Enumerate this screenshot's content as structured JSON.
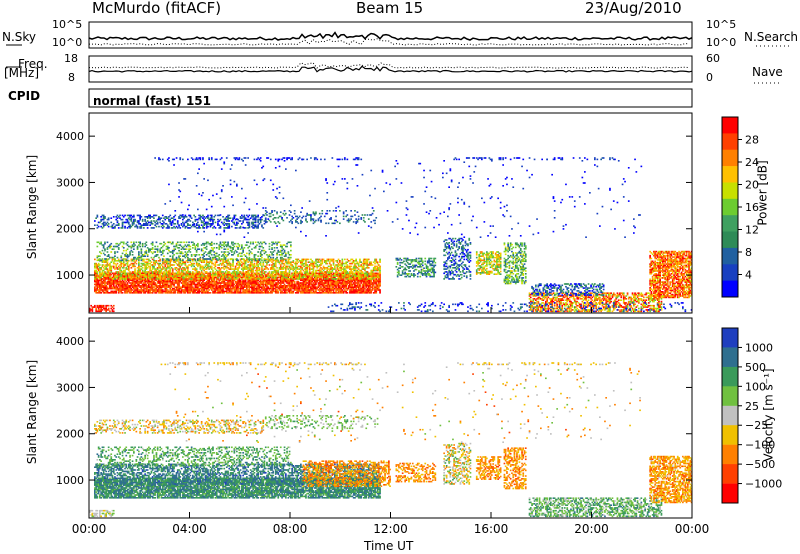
{
  "header": {
    "station": "McMurdo (fitACF)",
    "beam": "Beam 15",
    "date": "23/Aug/2010"
  },
  "side_labels": {
    "nsky": "N.Sky",
    "nsearch": "N.Search",
    "freq": "Freq.",
    "freq_unit": "[MHz]",
    "nave": "Nave",
    "cpid": "CPID",
    "cpid_value": "normal (fast) 151"
  },
  "top_panels": {
    "noise_left_ticks": [
      "10^5",
      "10^0"
    ],
    "noise_right_ticks": [
      "10^5",
      "10^0"
    ],
    "freq_left_ticks": [
      "18",
      "8"
    ],
    "nave_right_ticks": [
      "60",
      "0"
    ]
  },
  "chart_data": [
    {
      "type": "heatmap",
      "name": "power",
      "ylabel": "Slant Range [km]",
      "ylim": [
        180,
        4500
      ],
      "y_ticks": [
        1000,
        2000,
        3000,
        4000
      ],
      "xlim": [
        0,
        24
      ],
      "colorbar": {
        "label": "Power [dB]",
        "ticks": [
          "28",
          "24",
          "20",
          "16",
          "12",
          "8",
          "4"
        ],
        "colors": [
          "#ff0000",
          "#ff4000",
          "#ff8000",
          "#ffc000",
          "#c8e000",
          "#6ccc30",
          "#3fa060",
          "#2e8b57",
          "#2060a0",
          "#1840c0",
          "#0000ff"
        ]
      },
      "bands": [
        {
          "t": [
            0.2,
            11.6
          ],
          "r": [
            600,
            1050
          ],
          "cmin": 0.0,
          "cmax": 0.25,
          "d": 0.85
        },
        {
          "t": [
            0.2,
            11.6
          ],
          "r": [
            900,
            1350
          ],
          "cmin": 0.15,
          "cmax": 0.55,
          "d": 0.55
        },
        {
          "t": [
            0.3,
            8.0
          ],
          "r": [
            1300,
            1700
          ],
          "cmin": 0.4,
          "cmax": 0.8,
          "d": 0.3
        },
        {
          "t": [
            0.2,
            7.0
          ],
          "r": [
            2000,
            2300
          ],
          "cmin": 0.65,
          "cmax": 1.0,
          "d": 0.35
        },
        {
          "t": [
            7.0,
            11.5
          ],
          "r": [
            2100,
            2400
          ],
          "cmin": 0.6,
          "cmax": 0.9,
          "d": 0.2
        },
        {
          "t": [
            0.0,
            1.0
          ],
          "r": [
            200,
            350
          ],
          "cmin": 0.0,
          "cmax": 0.2,
          "d": 0.6
        },
        {
          "t": [
            12.2,
            13.8
          ],
          "r": [
            950,
            1350
          ],
          "cmin": 0.45,
          "cmax": 0.85,
          "d": 0.45
        },
        {
          "t": [
            14.1,
            15.2
          ],
          "r": [
            900,
            1800
          ],
          "cmin": 0.55,
          "cmax": 1.0,
          "d": 0.35
        },
        {
          "t": [
            15.4,
            16.4
          ],
          "r": [
            1000,
            1500
          ],
          "cmin": 0.2,
          "cmax": 0.6,
          "d": 0.55
        },
        {
          "t": [
            16.5,
            17.4
          ],
          "r": [
            800,
            1700
          ],
          "cmin": 0.35,
          "cmax": 0.8,
          "d": 0.45
        },
        {
          "t": [
            17.5,
            22.8
          ],
          "r": [
            200,
            600
          ],
          "cmin": 0.0,
          "cmax": 0.5,
          "d": 0.55
        },
        {
          "t": [
            17.6,
            20.5
          ],
          "r": [
            550,
            800
          ],
          "cmin": 0.6,
          "cmax": 1.0,
          "d": 0.4
        },
        {
          "t": [
            22.3,
            24.0
          ],
          "r": [
            500,
            1500
          ],
          "cmin": 0.0,
          "cmax": 0.4,
          "d": 0.7
        },
        {
          "t": [
            9.5,
            24.0
          ],
          "r": [
            200,
            400
          ],
          "cmin": 0.7,
          "cmax": 1.0,
          "d": 0.12
        },
        {
          "t": [
            3.0,
            22.0
          ],
          "r": [
            1800,
            3500
          ],
          "cmin": 0.85,
          "cmax": 1.0,
          "d": 0.015
        },
        {
          "t": [
            2.5,
            11.0
          ],
          "r": [
            3480,
            3540
          ],
          "cmin": 0.8,
          "cmax": 1.0,
          "d": 0.25
        },
        {
          "t": [
            14.5,
            21.0
          ],
          "r": [
            3480,
            3540
          ],
          "cmin": 0.8,
          "cmax": 1.0,
          "d": 0.2
        }
      ]
    },
    {
      "type": "heatmap",
      "name": "velocity",
      "ylabel": "Slant Range [km]",
      "xlabel": "Time UT",
      "ylim": [
        180,
        4500
      ],
      "y_ticks": [
        1000,
        2000,
        3000,
        4000
      ],
      "xlim": [
        0,
        24
      ],
      "x_ticks": [
        "00:00",
        "04:00",
        "08:00",
        "12:00",
        "16:00",
        "20:00",
        "00:00"
      ],
      "colorbar": {
        "label": "Velocity [m s⁻¹]",
        "ticks": [
          "1000",
          "500",
          "100",
          "25",
          "−25",
          "−100",
          "−500",
          "−1000"
        ],
        "colors": [
          "#1f3fbf",
          "#2f6f8f",
          "#3a9a5a",
          "#70c040",
          "#c0c0c0",
          "#f0c000",
          "#ff8000",
          "#ff4000",
          "#ff0000"
        ]
      },
      "bands": [
        {
          "t": [
            0.2,
            11.6
          ],
          "r": [
            600,
            1050
          ],
          "cmin": 0.15,
          "cmax": 0.35,
          "d": 0.8
        },
        {
          "t": [
            0.2,
            11.6
          ],
          "r": [
            900,
            1350
          ],
          "cmin": 0.1,
          "cmax": 0.3,
          "d": 0.5
        },
        {
          "t": [
            8.5,
            12.0
          ],
          "r": [
            850,
            1400
          ],
          "cmin": 0.6,
          "cmax": 0.8,
          "d": 0.45
        },
        {
          "t": [
            0.3,
            8.0
          ],
          "r": [
            1300,
            1700
          ],
          "cmin": 0.2,
          "cmax": 0.45,
          "d": 0.3
        },
        {
          "t": [
            0.2,
            7.0
          ],
          "r": [
            2000,
            2300
          ],
          "cmin": 0.4,
          "cmax": 0.75,
          "d": 0.3
        },
        {
          "t": [
            7.0,
            11.5
          ],
          "r": [
            2100,
            2400
          ],
          "cmin": 0.3,
          "cmax": 0.5,
          "d": 0.2
        },
        {
          "t": [
            12.2,
            13.8
          ],
          "r": [
            950,
            1350
          ],
          "cmin": 0.6,
          "cmax": 0.8,
          "d": 0.45
        },
        {
          "t": [
            14.1,
            15.2
          ],
          "r": [
            900,
            1800
          ],
          "cmin": 0.3,
          "cmax": 0.75,
          "d": 0.35
        },
        {
          "t": [
            15.4,
            16.4
          ],
          "r": [
            1000,
            1500
          ],
          "cmin": 0.6,
          "cmax": 0.8,
          "d": 0.5
        },
        {
          "t": [
            16.5,
            17.4
          ],
          "r": [
            800,
            1700
          ],
          "cmin": 0.6,
          "cmax": 0.8,
          "d": 0.45
        },
        {
          "t": [
            17.5,
            22.8
          ],
          "r": [
            200,
            600
          ],
          "cmin": 0.2,
          "cmax": 0.5,
          "d": 0.5
        },
        {
          "t": [
            22.3,
            24.0
          ],
          "r": [
            500,
            1500
          ],
          "cmin": 0.55,
          "cmax": 0.8,
          "d": 0.6
        },
        {
          "t": [
            0.0,
            1.0
          ],
          "r": [
            200,
            350
          ],
          "cmin": 0.4,
          "cmax": 0.6,
          "d": 0.5
        },
        {
          "t": [
            3.0,
            22.0
          ],
          "r": [
            1800,
            3500
          ],
          "cmin": 0.4,
          "cmax": 0.8,
          "d": 0.015
        },
        {
          "t": [
            2.5,
            11.0
          ],
          "r": [
            3480,
            3540
          ],
          "cmin": 0.45,
          "cmax": 0.7,
          "d": 0.25
        },
        {
          "t": [
            14.5,
            21.0
          ],
          "r": [
            3480,
            3540
          ],
          "cmin": 0.45,
          "cmax": 0.7,
          "d": 0.2
        }
      ]
    }
  ]
}
